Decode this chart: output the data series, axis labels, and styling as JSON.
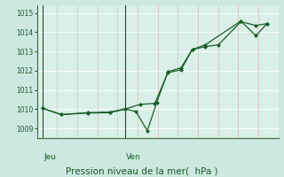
{
  "xlabel": "Pression niveau de la mer(  hPa )",
  "bg_color": "#cce8e0",
  "plot_bg_color": "#d8f0e8",
  "grid_h_color": "#b8d8d0",
  "grid_v_color": "#e8c8c8",
  "line_color": "#1a5c28",
  "ylim": [
    1008.5,
    1015.4
  ],
  "yticks": [
    1009,
    1010,
    1011,
    1012,
    1013,
    1014,
    1015
  ],
  "day_labels": [
    "Jeu",
    "Ven"
  ],
  "line1_x": [
    0.0,
    0.5,
    1.2,
    1.8,
    2.2,
    2.6,
    3.0,
    3.35,
    3.7,
    4.0,
    4.35,
    4.7,
    5.3,
    5.7,
    6.0
  ],
  "line1_y": [
    1010.05,
    1009.72,
    1009.8,
    1009.82,
    1010.0,
    1010.25,
    1010.3,
    1011.9,
    1012.05,
    1013.1,
    1013.25,
    1013.35,
    1014.55,
    1014.35,
    1014.45
  ],
  "line2_x": [
    0.0,
    0.5,
    1.2,
    1.8,
    2.2,
    2.5,
    2.8,
    3.05,
    3.35,
    3.7,
    4.0,
    4.35,
    5.3,
    5.7,
    6.0
  ],
  "line2_y": [
    1010.05,
    1009.72,
    1009.82,
    1009.85,
    1010.02,
    1009.87,
    1008.88,
    1010.35,
    1011.95,
    1012.15,
    1013.1,
    1013.35,
    1014.58,
    1013.82,
    1014.45
  ],
  "jeu_x": 0.0,
  "ven_x": 2.2,
  "xlim": [
    -0.15,
    6.3
  ],
  "marker_size": 2.5,
  "n_v_lines": 13
}
